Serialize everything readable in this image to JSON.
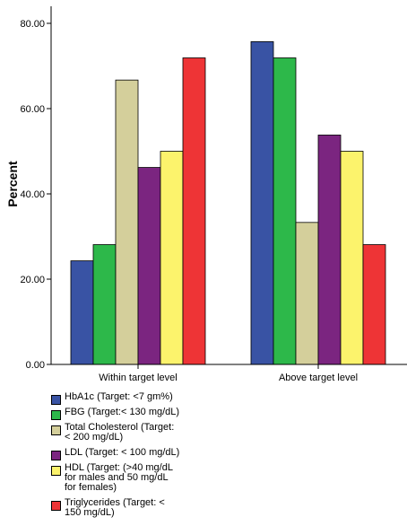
{
  "chart_data": {
    "type": "bar",
    "ylabel": "Percent",
    "xlabel": "",
    "ylim": [
      0,
      80
    ],
    "yticks": [
      "0.00",
      "20.00",
      "40.00",
      "60.00",
      "80.00"
    ],
    "categories": [
      "Within target level",
      "Above target level"
    ],
    "grid": false,
    "legend_position": "bottom-left",
    "series": [
      {
        "name": "HbA1c (Target: <7 gm%)",
        "color": "#3953A4",
        "values": [
          24.3,
          75.7
        ]
      },
      {
        "name": "FBG (Target:< 130 mg/dL)",
        "color": "#2DB84A",
        "values": [
          28.1,
          71.9
        ]
      },
      {
        "name": "Total Cholesterol (Target:\n< 200 mg/dL)",
        "color": "#D4CF9B",
        "values": [
          66.7,
          33.3
        ]
      },
      {
        "name": "LDL (Target: < 100 mg/dL)",
        "color": "#7B2580",
        "values": [
          46.2,
          53.8
        ]
      },
      {
        "name": "HDL (Target: (>40  mg/dL\nfor males and 50 mg/dL\nfor females)",
        "color": "#FCF36C",
        "values": [
          50.0,
          50.0
        ]
      },
      {
        "name": "Triglycerides (Target: <\n150 mg/dL)",
        "color": "#EE3436",
        "values": [
          71.9,
          28.1
        ]
      }
    ]
  }
}
